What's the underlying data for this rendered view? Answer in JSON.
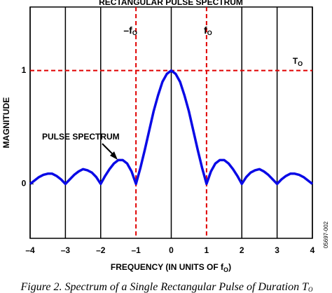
{
  "chart_data": {
    "type": "line",
    "title": "RECTANGULAR PULSE SPECTRUM",
    "x_label": {
      "text": "FREQUENCY (IN UNITS OF f",
      "subscript": "O",
      "end": ")"
    },
    "y_label": "MAGNITUDE",
    "x": [
      -4,
      -3.875,
      -3.75,
      -3.625,
      -3.5,
      -3.375,
      -3.25,
      -3.125,
      -3,
      -2.875,
      -2.75,
      -2.625,
      -2.5,
      -2.375,
      -2.25,
      -2.125,
      -2,
      -1.875,
      -1.75,
      -1.625,
      -1.5,
      -1.375,
      -1.25,
      -1.125,
      -1,
      -0.875,
      -0.75,
      -0.625,
      -0.5,
      -0.375,
      -0.25,
      -0.125,
      0,
      0.125,
      0.25,
      0.375,
      0.5,
      0.625,
      0.75,
      0.875,
      1,
      1.125,
      1.25,
      1.375,
      1.5,
      1.625,
      1.75,
      1.875,
      2,
      2.125,
      2.25,
      2.375,
      2.5,
      2.625,
      2.75,
      2.875,
      3,
      3.125,
      3.25,
      3.375,
      3.5,
      3.625,
      3.75,
      3.875,
      4
    ],
    "series": [
      {
        "name": "PULSE SPECTRUM",
        "color": "#0a0ae6",
        "values": [
          0,
          0.03,
          0.06,
          0.08,
          0.09,
          0.09,
          0.07,
          0.04,
          0,
          0.04,
          0.08,
          0.11,
          0.13,
          0.12,
          0.1,
          0.06,
          0,
          0.07,
          0.13,
          0.18,
          0.21,
          0.21,
          0.18,
          0.11,
          0,
          0.14,
          0.3,
          0.47,
          0.64,
          0.78,
          0.9,
          0.97,
          1,
          0.97,
          0.9,
          0.78,
          0.64,
          0.47,
          0.3,
          0.14,
          0,
          0.11,
          0.18,
          0.21,
          0.21,
          0.18,
          0.13,
          0.07,
          0,
          0.06,
          0.1,
          0.12,
          0.13,
          0.11,
          0.08,
          0.04,
          0,
          0.04,
          0.07,
          0.09,
          0.09,
          0.08,
          0.06,
          0.03,
          0
        ]
      }
    ],
    "xlim": [
      -4,
      4
    ],
    "ylim": [
      -0.48,
      1.56
    ],
    "xticks": [
      {
        "value": -4,
        "label": "–4"
      },
      {
        "value": -3,
        "label": "–3"
      },
      {
        "value": -2,
        "label": "–2"
      },
      {
        "value": -1,
        "label": "–1"
      },
      0,
      1,
      2,
      3,
      4
    ],
    "yticks": [
      0,
      1
    ],
    "grid": true,
    "reference_lines": {
      "x": [
        -1,
        1
      ],
      "y": [
        1
      ],
      "color": "#e00000"
    },
    "annotations": [
      {
        "text": "–f",
        "subscript": "O"
      },
      {
        "text": "f",
        "subscript": "O"
      },
      {
        "text": "T",
        "subscript": "O"
      }
    ],
    "caption": {
      "text": "Figure 2. Spectrum of a Single Rectangular Pulse of Duration T",
      "subscript": "O"
    },
    "figure_code": "05697-002"
  }
}
